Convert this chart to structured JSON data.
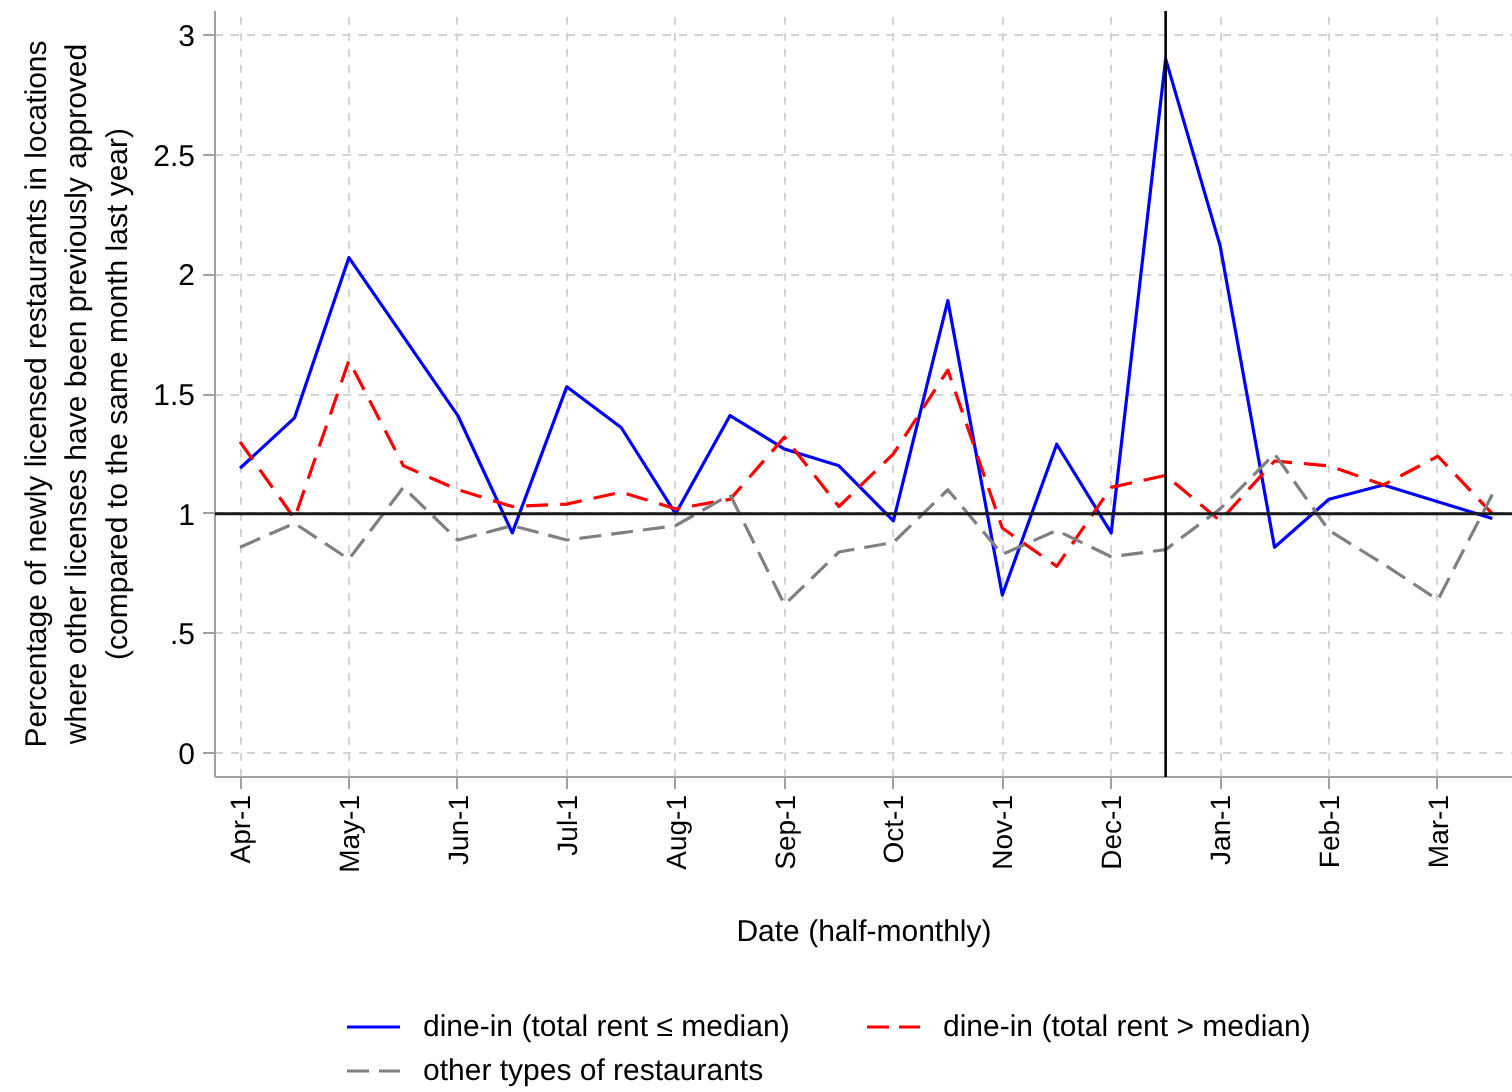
{
  "chart_data": {
    "type": "line",
    "xlabel": "Date (half-monthly)",
    "ylabel": "Percentage of newly licensed restaurants in locations\nwhere other licenses have been previously approved\n(compared to the same month last year)",
    "categories": [
      "Apr-1",
      null,
      "May-1",
      null,
      "Jun-1",
      null,
      "Jul-1",
      null,
      "Aug-1",
      null,
      "Sep-1",
      null,
      "Oct-1",
      null,
      "Nov-1",
      null,
      "Dec-1",
      null,
      "Jan-1",
      null,
      "Feb-1",
      null,
      "Mar-1",
      null
    ],
    "series": [
      {
        "name": "dine-in (total rent ≤ median)",
        "color": "#0000ff",
        "line_style": "solid",
        "values": [
          1.19,
          1.4,
          2.07,
          1.74,
          1.41,
          0.92,
          1.53,
          1.36,
          1.0,
          1.41,
          1.27,
          1.2,
          0.97,
          1.89,
          0.66,
          1.29,
          0.92,
          2.9,
          2.12,
          0.86,
          1.06,
          1.12,
          1.05,
          0.98
        ]
      },
      {
        "name": "dine-in (total rent > median)",
        "color": "#ff0000",
        "line_style": "dashed",
        "values": [
          1.3,
          0.98,
          1.64,
          1.2,
          1.1,
          1.03,
          1.04,
          1.09,
          1.02,
          1.06,
          1.32,
          1.03,
          1.25,
          1.6,
          0.94,
          0.78,
          1.11,
          1.16,
          0.97,
          1.22,
          1.2,
          1.12,
          1.24,
          1.0
        ]
      },
      {
        "name": "other types of restaurants",
        "color": "#808080",
        "line_style": "dashed",
        "values": [
          0.86,
          0.96,
          0.81,
          1.11,
          0.89,
          0.95,
          0.89,
          0.92,
          0.95,
          1.08,
          0.62,
          0.84,
          0.88,
          1.1,
          0.83,
          0.93,
          0.82,
          0.85,
          1.02,
          1.25,
          0.93,
          0.79,
          0.64,
          1.08
        ]
      }
    ],
    "ylim": [
      -0.1,
      3.1
    ],
    "yticks": [
      0,
      {
        "value": 0.5,
        "label": ".5"
      },
      1,
      1.5,
      2,
      2.5,
      3
    ],
    "ref_lines": [
      {
        "axis": "y",
        "value": 1,
        "color": "#1a1a1a"
      }
    ],
    "grid": true,
    "legend": "bottom"
  }
}
